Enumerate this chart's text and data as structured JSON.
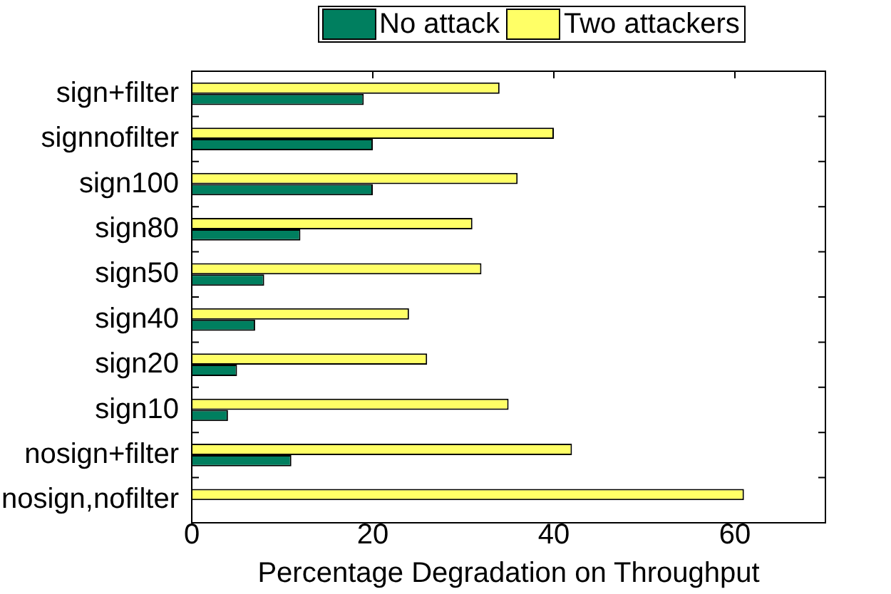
{
  "chart_data": {
    "type": "bar",
    "orientation": "horizontal",
    "xlabel": "Percentage Degradation on Throughput",
    "categories": [
      "sign+filter",
      "signnofilter",
      "sign100",
      "sign80",
      "sign50",
      "sign40",
      "sign20",
      "sign10",
      "nosign+filter",
      "nosign,nofilter"
    ],
    "series": [
      {
        "name": "No attack",
        "color": "#007f5f",
        "values": [
          19,
          20,
          20,
          12,
          8,
          7,
          5,
          4,
          11,
          0
        ]
      },
      {
        "name": "Two attackers",
        "color": "#ffff66",
        "values": [
          34,
          40,
          36,
          31,
          32,
          24,
          26,
          35,
          42,
          61
        ]
      }
    ],
    "xlim": [
      0,
      70
    ],
    "xticks": [
      0,
      20,
      40,
      60
    ],
    "grid": false,
    "legend": "top"
  }
}
